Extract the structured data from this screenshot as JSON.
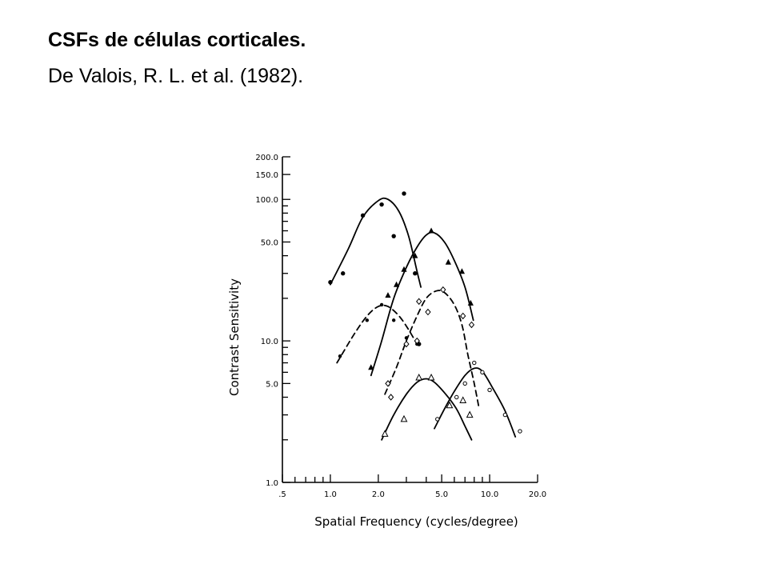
{
  "slide": {
    "title": "CSFs de células corticales.",
    "subtitle": "De Valois, R. L. et al. (1982)."
  },
  "chart_data": {
    "type": "scatter",
    "xlabel": "Spatial  Frequency  (cycles/degree)",
    "ylabel": "Contrast  Sensitivity",
    "xscale": "log",
    "yscale": "log",
    "xlim": [
      0.5,
      20.0
    ],
    "ylim": [
      1.0,
      200.0
    ],
    "x_tick_labels": [
      {
        "value": 0.5,
        "label": ".5"
      },
      {
        "value": 1.0,
        "label": "1.0"
      },
      {
        "value": 2.0,
        "label": "2.0"
      },
      {
        "value": 5.0,
        "label": "5.0"
      },
      {
        "value": 10.0,
        "label": "10.0"
      },
      {
        "value": 20.0,
        "label": "20.0"
      }
    ],
    "y_tick_labels": [
      {
        "value": 1.0,
        "label": "1.0"
      },
      {
        "value": 5.0,
        "label": "5.0"
      },
      {
        "value": 10.0,
        "label": "10.0"
      },
      {
        "value": 50.0,
        "label": "50.0"
      },
      {
        "value": 100.0,
        "label": "100.0"
      },
      {
        "value": 150.0,
        "label": "150.0"
      },
      {
        "value": 200.0,
        "label": "200.0"
      }
    ],
    "grid": false,
    "legend": "none",
    "series": [
      {
        "marker": "filled-circle",
        "line": "solid",
        "points": [
          [
            1.0,
            26
          ],
          [
            1.2,
            30
          ],
          [
            1.6,
            77
          ],
          [
            2.1,
            92
          ],
          [
            2.5,
            55
          ],
          [
            2.9,
            110
          ],
          [
            3.4,
            30
          ],
          [
            3.6,
            9.5
          ]
        ],
        "curve": [
          [
            1.0,
            25
          ],
          [
            1.3,
            45
          ],
          [
            1.6,
            75
          ],
          [
            2.0,
            98
          ],
          [
            2.3,
            100
          ],
          [
            2.7,
            82
          ],
          [
            3.1,
            55
          ],
          [
            3.5,
            31
          ],
          [
            3.7,
            24
          ]
        ]
      },
      {
        "marker": "filled-triangle",
        "line": "solid",
        "points": [
          [
            1.8,
            6.5
          ],
          [
            2.3,
            21
          ],
          [
            2.6,
            25
          ],
          [
            2.9,
            32
          ],
          [
            3.4,
            40
          ],
          [
            4.3,
            60
          ],
          [
            5.5,
            36
          ],
          [
            6.7,
            31
          ],
          [
            7.6,
            18.5
          ]
        ],
        "curve": [
          [
            1.8,
            5.7
          ],
          [
            2.1,
            10
          ],
          [
            2.5,
            20
          ],
          [
            3.0,
            33
          ],
          [
            3.5,
            46
          ],
          [
            4.0,
            56
          ],
          [
            4.5,
            58
          ],
          [
            5.2,
            50
          ],
          [
            6.0,
            37
          ],
          [
            7.0,
            24
          ],
          [
            7.9,
            14
          ]
        ]
      },
      {
        "marker": "small-filled-circle",
        "line": "dashed",
        "points": [
          [
            1.15,
            7.8
          ],
          [
            1.7,
            14
          ],
          [
            2.1,
            18
          ],
          [
            2.5,
            14
          ],
          [
            3.0,
            10.5
          ],
          [
            3.5,
            9.5
          ]
        ],
        "curve": [
          [
            1.1,
            7
          ],
          [
            1.4,
            11
          ],
          [
            1.7,
            15
          ],
          [
            2.0,
            17.5
          ],
          [
            2.3,
            17.5
          ],
          [
            2.7,
            15
          ],
          [
            3.1,
            12
          ],
          [
            3.5,
            9.5
          ]
        ]
      },
      {
        "marker": "open-diamond",
        "line": "dashed",
        "points": [
          [
            2.3,
            5
          ],
          [
            2.4,
            4
          ],
          [
            3.0,
            9.5
          ],
          [
            3.6,
            19
          ],
          [
            4.1,
            16
          ],
          [
            5.1,
            23
          ],
          [
            6.8,
            15
          ],
          [
            7.7,
            13
          ],
          [
            3.5,
            10
          ]
        ],
        "curve": [
          [
            2.2,
            4.2
          ],
          [
            2.6,
            6.5
          ],
          [
            3.0,
            10
          ],
          [
            3.5,
            15
          ],
          [
            4.0,
            20
          ],
          [
            4.6,
            22.5
          ],
          [
            5.2,
            22
          ],
          [
            6.0,
            18
          ],
          [
            6.7,
            13
          ],
          [
            7.3,
            8
          ],
          [
            8.0,
            5
          ],
          [
            8.6,
            3.3
          ]
        ]
      },
      {
        "marker": "open-triangle",
        "line": "solid",
        "points": [
          [
            2.2,
            2.2
          ],
          [
            2.9,
            2.8
          ],
          [
            3.6,
            5.5
          ],
          [
            4.3,
            5.5
          ],
          [
            5.6,
            3.5
          ],
          [
            6.8,
            3.8
          ],
          [
            7.5,
            3.0
          ]
        ],
        "curve": [
          [
            2.1,
            2.0
          ],
          [
            2.5,
            3.0
          ],
          [
            3.0,
            4.2
          ],
          [
            3.5,
            5.1
          ],
          [
            4.0,
            5.4
          ],
          [
            4.5,
            5.1
          ],
          [
            5.3,
            4.2
          ],
          [
            6.2,
            3.3
          ],
          [
            7.0,
            2.5
          ],
          [
            7.7,
            2.0
          ]
        ]
      },
      {
        "marker": "small-open-circle",
        "line": "solid",
        "points": [
          [
            4.7,
            2.8
          ],
          [
            6.2,
            4.0
          ],
          [
            7.0,
            5.0
          ],
          [
            8.0,
            7.0
          ],
          [
            9.0,
            6.0
          ],
          [
            10.0,
            4.5
          ],
          [
            12.5,
            3.0
          ],
          [
            15.5,
            2.3
          ]
        ],
        "curve": [
          [
            4.5,
            2.4
          ],
          [
            5.2,
            3.3
          ],
          [
            6.0,
            4.4
          ],
          [
            7.0,
            5.7
          ],
          [
            8.0,
            6.4
          ],
          [
            9.0,
            6.1
          ],
          [
            10.5,
            4.6
          ],
          [
            12.5,
            3.2
          ],
          [
            14.5,
            2.1
          ]
        ]
      }
    ]
  }
}
